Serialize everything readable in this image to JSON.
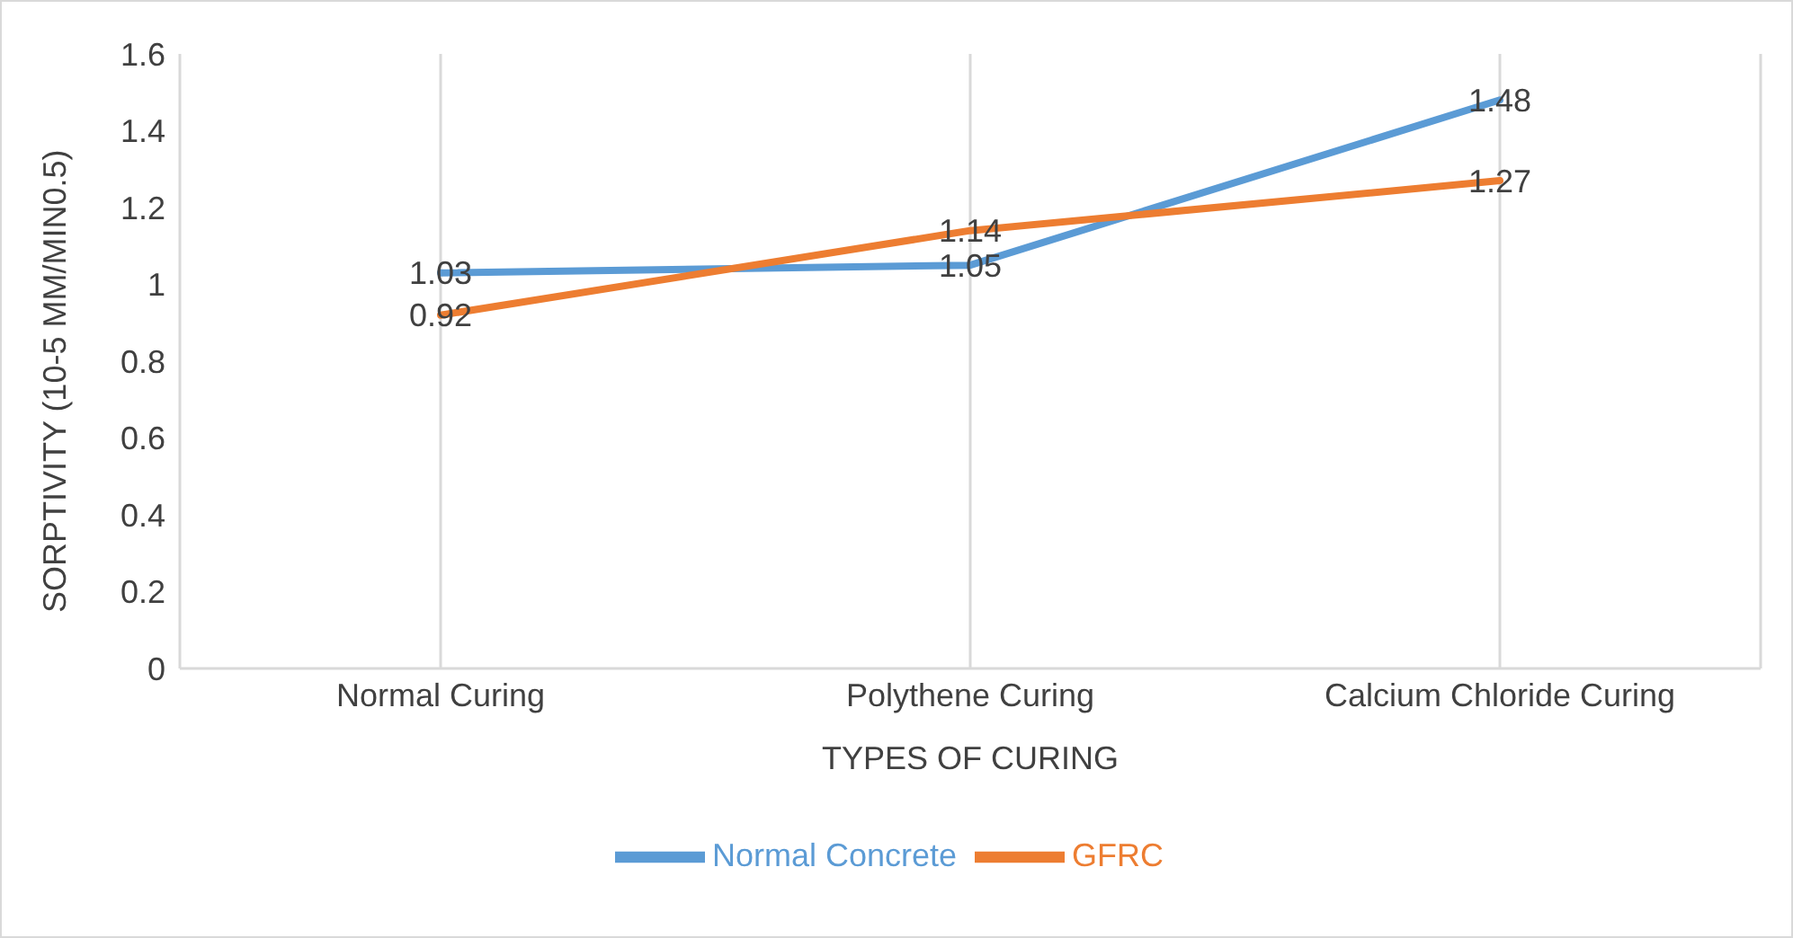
{
  "chart_data": {
    "type": "line",
    "xlabel": "TYPES OF CURING",
    "ylabel": "SORPTIVITY (10-5 MM/MIN0.5)",
    "categories": [
      "Normal Curing",
      "Polythene Curing",
      "Calcium Chloride Curing"
    ],
    "series": [
      {
        "name": "Normal Concrete",
        "color": "#5b9bd5",
        "values": [
          1.03,
          1.05,
          1.48
        ]
      },
      {
        "name": "GFRC",
        "color": "#ed7d31",
        "values": [
          0.92,
          1.14,
          1.27
        ]
      }
    ],
    "ylim": [
      0,
      1.6
    ],
    "yticks": [
      0,
      0.2,
      0.4,
      0.6,
      0.8,
      1,
      1.2,
      1.4,
      1.6
    ],
    "grid": "x",
    "legend": "bottom",
    "marker": "none",
    "line_style": "solid",
    "data_labels": true
  }
}
